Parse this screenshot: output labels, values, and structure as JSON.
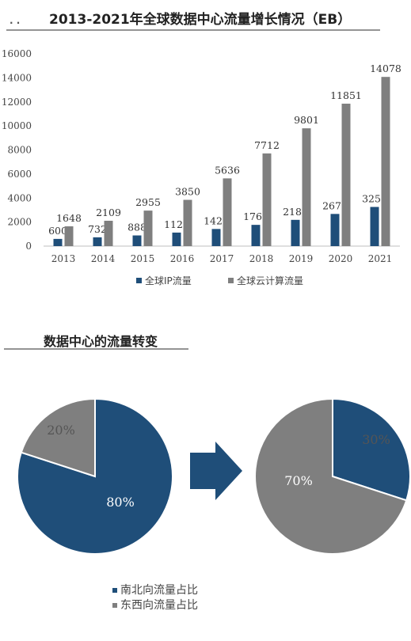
{
  "chart_data": [
    {
      "type": "bar",
      "title": "2013-2021年全球数据中心流量增长情况（EB）",
      "categories": [
        "2013",
        "2014",
        "2015",
        "2016",
        "2017",
        "2018",
        "2019",
        "2020",
        "2021"
      ],
      "series": [
        {
          "name": "全球IP流量",
          "color": "#1f4e79",
          "values": [
            600,
            732,
            888,
            1126,
            1426,
            1768,
            2185,
            2677,
            3259
          ]
        },
        {
          "name": "全球云计算流量",
          "color": "#7f7f7f",
          "values": [
            1648,
            2109,
            2955,
            3850,
            5636,
            7712,
            9801,
            11851,
            14078
          ]
        }
      ],
      "ylim": [
        0,
        16000
      ],
      "yticks": [
        0,
        2000,
        4000,
        6000,
        8000,
        10000,
        12000,
        14000,
        16000
      ],
      "legend_position": "bottom"
    },
    {
      "type": "pie",
      "title": "数据中心的流量转变",
      "legend": [
        {
          "label": "南北向流量占比",
          "color": "#1f4e79"
        },
        {
          "label": "东西向流量占比",
          "color": "#7f7f7f"
        }
      ],
      "pies": [
        {
          "slices": [
            {
              "label": "南北向流量占比",
              "value": 80,
              "text": "80%"
            },
            {
              "label": "东西向流量占比",
              "value": 20,
              "text": "20%"
            }
          ]
        },
        {
          "slices": [
            {
              "label": "南北向流量占比",
              "value": 30,
              "text": "30%"
            },
            {
              "label": "东西向流量占比",
              "value": 70,
              "text": "70%"
            }
          ]
        }
      ]
    }
  ],
  "header_dots": ". ."
}
